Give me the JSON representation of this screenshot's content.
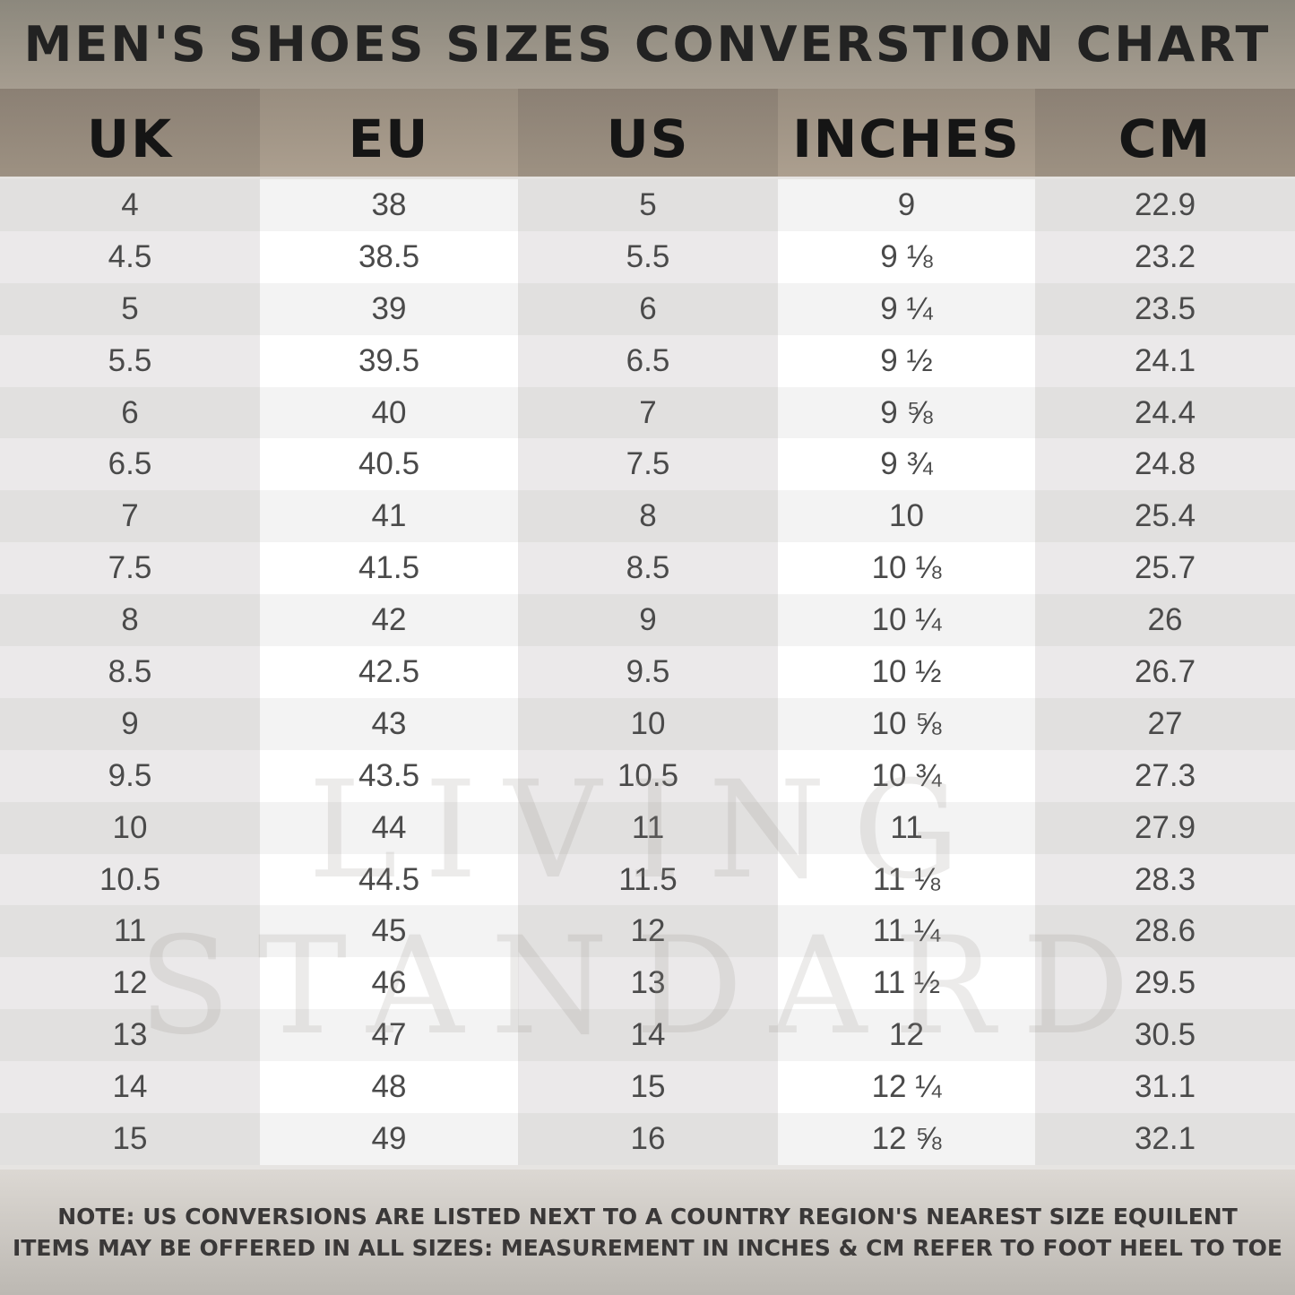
{
  "title": "MEN'S SHOES SIZES CONVERSTION CHART",
  "columns": [
    "UK",
    "EU",
    "US",
    "INCHES",
    "CM"
  ],
  "rows": [
    [
      "4",
      "38",
      "5",
      "9",
      "22.9"
    ],
    [
      "4.5",
      "38.5",
      "5.5",
      "9 ⅛",
      "23.2"
    ],
    [
      "5",
      "39",
      "6",
      "9 ¼",
      "23.5"
    ],
    [
      "5.5",
      "39.5",
      "6.5",
      "9 ½",
      "24.1"
    ],
    [
      "6",
      "40",
      "7",
      "9 ⅝",
      "24.4"
    ],
    [
      "6.5",
      "40.5",
      "7.5",
      "9 ¾",
      "24.8"
    ],
    [
      "7",
      "41",
      "8",
      "10",
      "25.4"
    ],
    [
      "7.5",
      "41.5",
      "8.5",
      "10 ⅛",
      "25.7"
    ],
    [
      "8",
      "42",
      "9",
      "10 ¼",
      "26"
    ],
    [
      "8.5",
      "42.5",
      "9.5",
      "10 ½",
      "26.7"
    ],
    [
      "9",
      "43",
      "10",
      "10 ⅝",
      "27"
    ],
    [
      "9.5",
      "43.5",
      "10.5",
      "10 ¾",
      "27.3"
    ],
    [
      "10",
      "44",
      "11",
      "11",
      "27.9"
    ],
    [
      "10.5",
      "44.5",
      "11.5",
      "11 ⅛",
      "28.3"
    ],
    [
      "11",
      "45",
      "12",
      "11 ¼",
      "28.6"
    ],
    [
      "12",
      "46",
      "13",
      "11 ½",
      "29.5"
    ],
    [
      "13",
      "47",
      "14",
      "12",
      "30.5"
    ],
    [
      "14",
      "48",
      "15",
      "12 ¼",
      "31.1"
    ],
    [
      "15",
      "49",
      "16",
      "12 ⅝",
      "32.1"
    ]
  ],
  "watermark": "LIVING STANDARD",
  "footer": {
    "note_label": "NOTE:",
    "line1": " US CONVERSIONS ARE LISTED NEXT TO A COUNTRY REGION'S NEAREST SIZE EQUILENT",
    "line2": "ITEMS MAY BE OFFERED IN ALL SIZES: MEASUREMENT IN INCHES & CM REFER TO FOOT HEEL TO TOE"
  }
}
